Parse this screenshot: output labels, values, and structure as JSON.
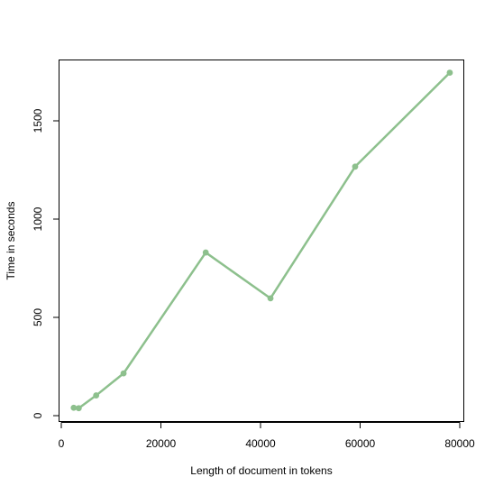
{
  "chart_data": {
    "type": "line",
    "title": "",
    "xlabel": "Length of document in tokens",
    "ylabel": "Time in seconds",
    "xlim": [
      0,
      80000
    ],
    "ylim": [
      0,
      1750
    ],
    "x_ticks": [
      0,
      20000,
      40000,
      60000,
      80000
    ],
    "y_ticks": [
      0,
      500,
      1000,
      1500
    ],
    "series": [
      {
        "color": "#8dc08d",
        "points": [
          {
            "x": 2500,
            "y": 40
          },
          {
            "x": 3500,
            "y": 38
          },
          {
            "x": 7000,
            "y": 103
          },
          {
            "x": 12500,
            "y": 215
          },
          {
            "x": 29000,
            "y": 830
          },
          {
            "x": 42000,
            "y": 597
          },
          {
            "x": 59000,
            "y": 1267
          },
          {
            "x": 78000,
            "y": 1745
          }
        ]
      }
    ],
    "grid": false,
    "legend": "none"
  }
}
